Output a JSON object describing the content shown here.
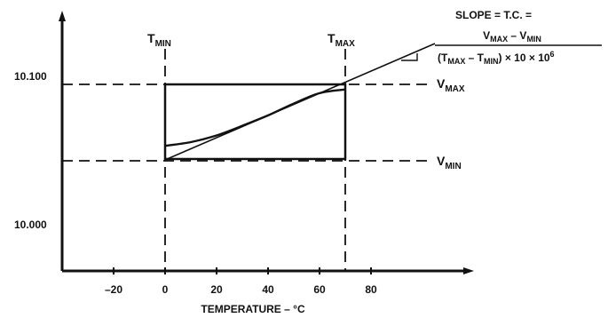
{
  "diagram": {
    "formula": {
      "line1": "SLOPE = T.C. =",
      "numerator": {
        "vmax_base": "V",
        "vmax_sub": "MAX",
        "minus": " – ",
        "vmin_base": "V",
        "vmin_sub": "MIN"
      },
      "denominator": {
        "open": "(T",
        "tmax_sub": "MAX",
        "minus": " – T",
        "tmin_sub": "MIN",
        "tail": ") × 10 × 10",
        "exp": "6"
      }
    },
    "labels": {
      "tmin": {
        "base": "T",
        "sub": "MIN"
      },
      "tmax": {
        "base": "T",
        "sub": "MAX"
      },
      "vmax": {
        "base": "V",
        "sub": "MAX"
      },
      "vmin": {
        "base": "V",
        "sub": "MIN"
      }
    },
    "y_ticks": [
      {
        "label": "10.100",
        "value": 10.1
      },
      {
        "label": "10.000",
        "value": 10.0
      }
    ],
    "x_ticks": [
      {
        "label": "–20",
        "value": -20
      },
      {
        "label": "0",
        "value": 0
      },
      {
        "label": "20",
        "value": 20
      },
      {
        "label": "40",
        "value": 40
      },
      {
        "label": "60",
        "value": 60
      },
      {
        "label": "80",
        "value": 80
      }
    ],
    "x_axis_label": "TEMPERATURE – °C",
    "box": {
      "t_min": 0,
      "t_max": 70
    },
    "curve": [
      [
        0,
        10.055
      ],
      [
        10,
        10.0575
      ],
      [
        20,
        10.062
      ],
      [
        30,
        10.0685
      ],
      [
        40,
        10.0755
      ],
      [
        50,
        10.0835
      ],
      [
        60,
        10.0905
      ],
      [
        70,
        10.093
      ]
    ]
  }
}
